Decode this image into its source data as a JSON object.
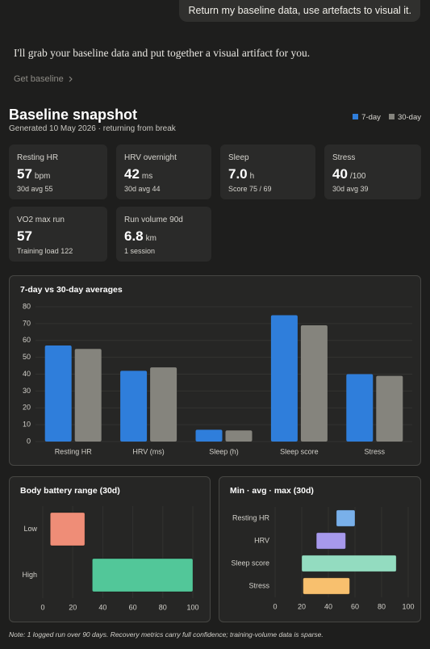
{
  "user_message": "Return my baseline data, use artefacts to visual it.",
  "assistant_message": "I'll grab your baseline data and put together a visual artifact for you.",
  "action": "Get baseline",
  "artifact": {
    "title": "Baseline snapshot",
    "subtitle": "Generated 10 May 2026 · returning from break",
    "cards": [
      {
        "label": "Resting HR",
        "value": "57",
        "unit": "bpm",
        "sub": "30d avg 55"
      },
      {
        "label": "HRV overnight",
        "value": "42",
        "unit": "ms",
        "sub": "30d avg 44"
      },
      {
        "label": "Sleep",
        "value": "7.0",
        "unit": "h",
        "sub": "Score 75 / 69"
      },
      {
        "label": "Stress",
        "value": "40",
        "unit": "/100",
        "sub": "30d avg 39"
      },
      {
        "label": "VO2 max run",
        "value": "57",
        "sub": "Training load 122"
      },
      {
        "label": "Run volume 90d",
        "value": "6.8",
        "unit": "km",
        "sub": "1 session"
      }
    ],
    "note": "Note: 1 logged run over 90 days. Recovery metrics carry full confidence; training-volume data is sparse."
  },
  "chart_data": [
    {
      "type": "bar",
      "title": "7-day vs 30-day averages",
      "categories": [
        "Resting HR",
        "HRV (ms)",
        "Sleep (h)",
        "Sleep score",
        "Stress"
      ],
      "series": [
        {
          "name": "7-day",
          "color": "#2f7edb",
          "values": [
            57,
            42,
            7,
            75,
            40
          ]
        },
        {
          "name": "30-day",
          "color": "#85847d",
          "values": [
            55,
            44,
            6.6,
            69,
            39
          ]
        }
      ],
      "ylim": [
        0,
        80
      ],
      "yticks": [
        0,
        10,
        20,
        30,
        40,
        50,
        60,
        70,
        80
      ],
      "grid": true
    },
    {
      "type": "range",
      "title": "Body battery range (30d)",
      "categories": [
        "Low",
        "High"
      ],
      "low": [
        5,
        33
      ],
      "high": [
        28,
        100
      ],
      "colors": [
        "#ef8d77",
        "#52c799"
      ],
      "xlim": [
        0,
        100
      ],
      "xticks": [
        0,
        20,
        40,
        60,
        80,
        100
      ],
      "grid": true
    },
    {
      "type": "range",
      "title": "Min · avg · max (30d)",
      "categories": [
        "Resting HR",
        "HRV",
        "Sleep score",
        "Stress"
      ],
      "low": [
        46,
        31,
        20,
        21
      ],
      "high": [
        60,
        53,
        91,
        56
      ],
      "colors": [
        "#79b0ea",
        "#a799ec",
        "#93dcc0",
        "#f8c06e"
      ],
      "xlim": [
        0,
        100
      ],
      "xticks": [
        0,
        20,
        40,
        60,
        80,
        100
      ],
      "grid": true
    }
  ]
}
